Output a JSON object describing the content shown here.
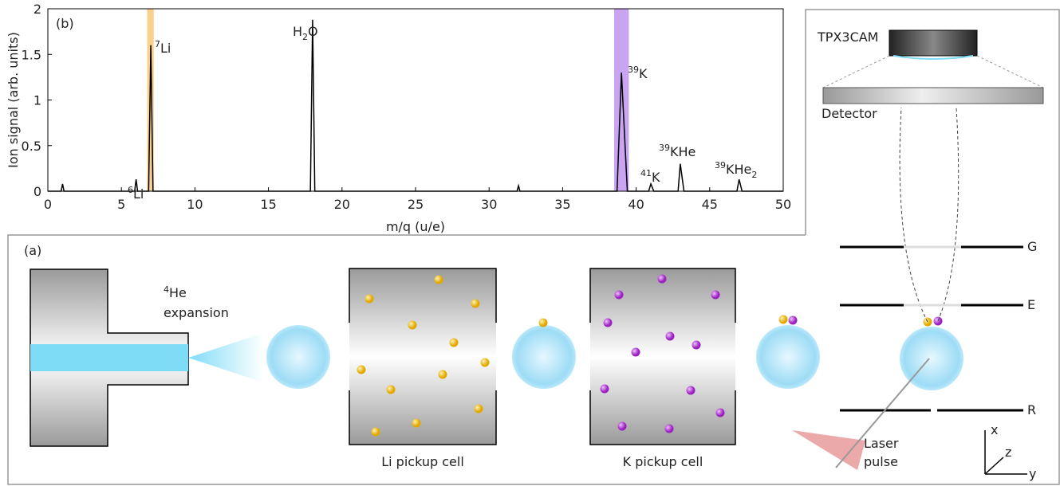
{
  "chart_data": {
    "type": "line",
    "panel_label": "(b)",
    "x_label": "m/q (u/e)",
    "y_label": "Ion signal (arb. units)",
    "x": [
      0,
      0.9,
      1,
      1.1,
      5.9,
      6,
      6.1,
      6.85,
      7,
      7.15,
      17.85,
      18,
      18.15,
      31.9,
      32,
      32.1,
      38.7,
      39,
      39.4,
      40.85,
      41,
      41.2,
      42.85,
      43,
      43.25,
      46.85,
      47,
      47.2,
      50
    ],
    "values": [
      0,
      0,
      0.08,
      0,
      0,
      0.13,
      0,
      0,
      1.6,
      0,
      0,
      1.88,
      0,
      0,
      0.06,
      0,
      0,
      1.3,
      0,
      0,
      0.08,
      0,
      0,
      0.3,
      0,
      0,
      0.13,
      0,
      0
    ],
    "color": "#000000",
    "xlim": [
      0,
      50
    ],
    "ylim": [
      0,
      2
    ],
    "xticks": [
      0,
      5,
      10,
      15,
      20,
      25,
      30,
      35,
      40,
      45,
      50
    ],
    "yticks": [
      0,
      0.5,
      1,
      1.5,
      2
    ],
    "highlights": [
      {
        "xlim": [
          6.75,
          7.2
        ],
        "color": "#f9d08e"
      },
      {
        "xlim": [
          38.5,
          39.5
        ],
        "color": "#c9a4f0"
      }
    ],
    "annotations": [
      {
        "sup": "6",
        "base": "Li"
      },
      {
        "sup": "7",
        "base": "Li"
      },
      {
        "base": "H",
        "sub": "2",
        "tail": "O"
      },
      {
        "sup": "39",
        "base": "K"
      },
      {
        "sup": "41",
        "base": "K"
      },
      {
        "sup": "39",
        "base": "KHe"
      },
      {
        "sup": "39",
        "base": "KHe",
        "sub": "2"
      }
    ]
  },
  "diagram": {
    "panel_label": "(a)",
    "camera": "TPX3CAM",
    "detector": "Detector",
    "electrodes": [
      "G",
      "E",
      "R"
    ],
    "expansion": {
      "sup": "4",
      "base": "He",
      "line2": "expansion"
    },
    "cells": [
      "Li pickup cell",
      "K pickup cell"
    ],
    "laser": [
      "Laser",
      "pulse"
    ],
    "axes": [
      "x",
      "z",
      "y"
    ]
  }
}
